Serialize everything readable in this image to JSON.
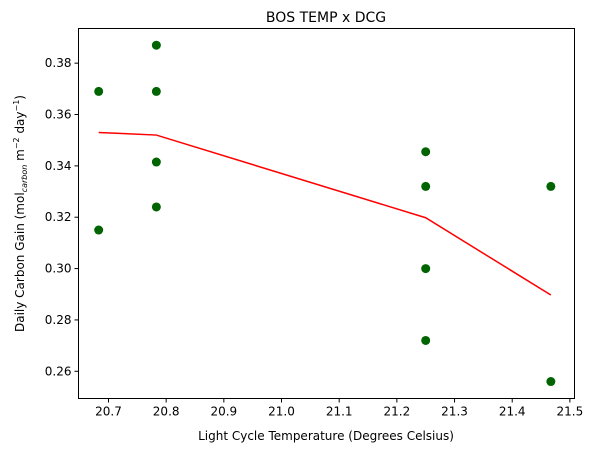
{
  "chart_data": {
    "type": "scatter",
    "title": "BOS TEMP x DCG",
    "xlabel": "Light Cycle Temperature (Degrees Celsius)",
    "ylabel": {
      "prefix": "Daily Carbon Gain (mol",
      "sub": "carbon",
      "mid": " m",
      "sup1": "−2",
      "mid2": " day",
      "sup2": "−1",
      "suffix": ")"
    },
    "xlim": [
      20.648,
      21.508
    ],
    "ylim": [
      0.2494,
      0.3935
    ],
    "xticks": [
      20.7,
      20.8,
      20.9,
      21.0,
      21.1,
      21.2,
      21.3,
      21.4,
      21.5
    ],
    "xtick_labels": [
      "20.7",
      "20.8",
      "20.9",
      "21.0",
      "21.1",
      "21.2",
      "21.3",
      "21.4",
      "21.5"
    ],
    "yticks": [
      0.26,
      0.28,
      0.3,
      0.32,
      0.34,
      0.36,
      0.38
    ],
    "ytick_labels": [
      "0.26",
      "0.28",
      "0.30",
      "0.32",
      "0.34",
      "0.36",
      "0.38"
    ],
    "grid": false,
    "series": [
      {
        "kind": "scatter",
        "color": "#006400",
        "points": [
          {
            "x": 20.683,
            "y": 0.369
          },
          {
            "x": 20.683,
            "y": 0.315
          },
          {
            "x": 20.783,
            "y": 0.387
          },
          {
            "x": 20.783,
            "y": 0.369
          },
          {
            "x": 20.783,
            "y": 0.3415
          },
          {
            "x": 20.783,
            "y": 0.324
          },
          {
            "x": 21.25,
            "y": 0.3455
          },
          {
            "x": 21.25,
            "y": 0.332
          },
          {
            "x": 21.25,
            "y": 0.3
          },
          {
            "x": 21.25,
            "y": 0.272
          },
          {
            "x": 21.467,
            "y": 0.332
          },
          {
            "x": 21.467,
            "y": 0.256
          }
        ]
      },
      {
        "kind": "line",
        "color": "#ff0000",
        "points": [
          {
            "x": 20.683,
            "y": 0.353
          },
          {
            "x": 20.783,
            "y": 0.352
          },
          {
            "x": 21.25,
            "y": 0.3198
          },
          {
            "x": 21.467,
            "y": 0.2897
          }
        ]
      }
    ]
  }
}
